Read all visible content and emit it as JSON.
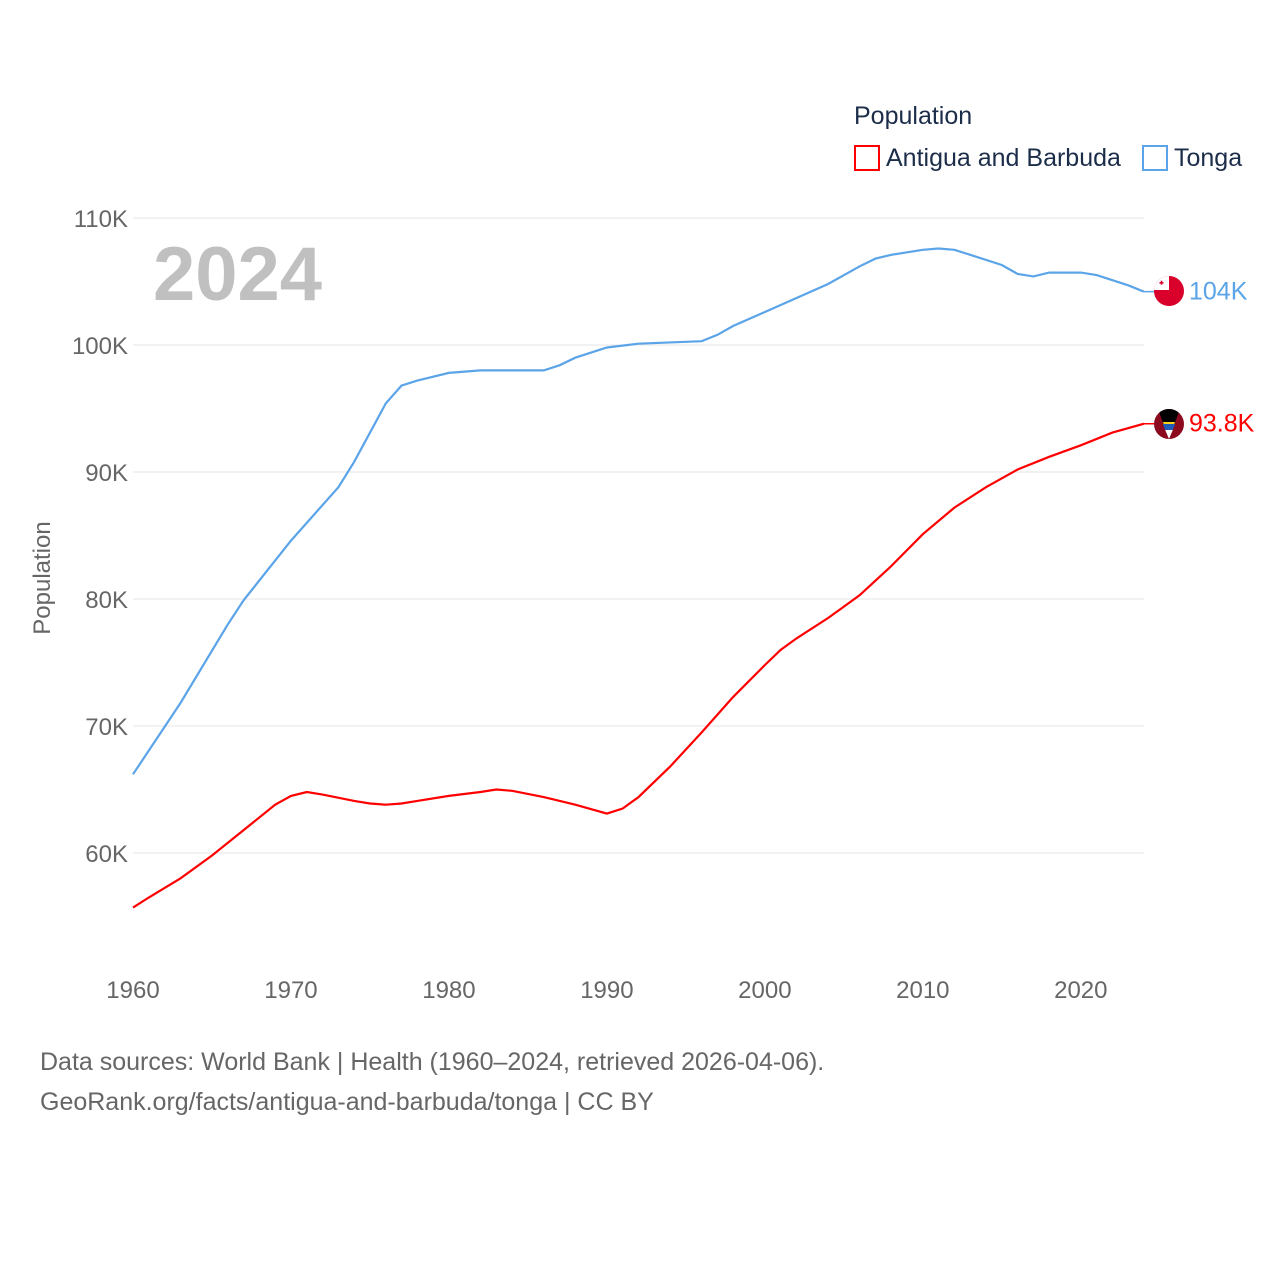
{
  "chart_data": {
    "type": "line",
    "title": "",
    "year_label": "2024",
    "ylabel": "Population",
    "xlabel": "",
    "ylim": [
      52000,
      110000
    ],
    "xlim": [
      1960,
      2024
    ],
    "grid": true,
    "y_ticks": [
      {
        "v": 60000,
        "label": "60K"
      },
      {
        "v": 70000,
        "label": "70K"
      },
      {
        "v": 80000,
        "label": "80K"
      },
      {
        "v": 90000,
        "label": "90K"
      },
      {
        "v": 100000,
        "label": "100K"
      },
      {
        "v": 110000,
        "label": "110K"
      }
    ],
    "x_ticks": [
      {
        "v": 1960,
        "label": "1960"
      },
      {
        "v": 1970,
        "label": "1970"
      },
      {
        "v": 1980,
        "label": "1980"
      },
      {
        "v": 1990,
        "label": "1990"
      },
      {
        "v": 2000,
        "label": "2000"
      },
      {
        "v": 2010,
        "label": "2010"
      },
      {
        "v": 2020,
        "label": "2020"
      }
    ],
    "legend": {
      "title": "Population",
      "placement": "top-right"
    },
    "series": [
      {
        "name": "Antigua and Barbuda",
        "color": "#ff0000",
        "end_label": "93.8K",
        "flag": "antigua-flag",
        "points": [
          [
            1960,
            55700
          ],
          [
            1961,
            56500
          ],
          [
            1963,
            58000
          ],
          [
            1965,
            59800
          ],
          [
            1967,
            61800
          ],
          [
            1969,
            63800
          ],
          [
            1970,
            64500
          ],
          [
            1971,
            64800
          ],
          [
            1972,
            64600
          ],
          [
            1974,
            64100
          ],
          [
            1975,
            63900
          ],
          [
            1976,
            63800
          ],
          [
            1977,
            63900
          ],
          [
            1978,
            64100
          ],
          [
            1980,
            64500
          ],
          [
            1982,
            64800
          ],
          [
            1983,
            65000
          ],
          [
            1984,
            64900
          ],
          [
            1986,
            64400
          ],
          [
            1988,
            63800
          ],
          [
            1990,
            63100
          ],
          [
            1991,
            63500
          ],
          [
            1992,
            64400
          ],
          [
            1994,
            66800
          ],
          [
            1996,
            69500
          ],
          [
            1998,
            72300
          ],
          [
            2000,
            74800
          ],
          [
            2001,
            76000
          ],
          [
            2002,
            76900
          ],
          [
            2004,
            78500
          ],
          [
            2005,
            79400
          ],
          [
            2006,
            80300
          ],
          [
            2008,
            82600
          ],
          [
            2010,
            85100
          ],
          [
            2012,
            87200
          ],
          [
            2014,
            88800
          ],
          [
            2016,
            90200
          ],
          [
            2018,
            91200
          ],
          [
            2020,
            92100
          ],
          [
            2022,
            93100
          ],
          [
            2024,
            93800
          ]
        ]
      },
      {
        "name": "Tonga",
        "color": "#5ba4e8",
        "end_label": "104K",
        "flag": "tonga-flag",
        "points": [
          [
            1960,
            66200
          ],
          [
            1963,
            71800
          ],
          [
            1966,
            78000
          ],
          [
            1967,
            79900
          ],
          [
            1970,
            84600
          ],
          [
            1973,
            88800
          ],
          [
            1974,
            90800
          ],
          [
            1976,
            95400
          ],
          [
            1977,
            96800
          ],
          [
            1978,
            97200
          ],
          [
            1980,
            97800
          ],
          [
            1982,
            98000
          ],
          [
            1986,
            98000
          ],
          [
            1987,
            98400
          ],
          [
            1988,
            99000
          ],
          [
            1989,
            99400
          ],
          [
            1990,
            99800
          ],
          [
            1992,
            100100
          ],
          [
            1996,
            100300
          ],
          [
            1997,
            100800
          ],
          [
            1998,
            101500
          ],
          [
            2000,
            102600
          ],
          [
            2002,
            103700
          ],
          [
            2004,
            104800
          ],
          [
            2006,
            106200
          ],
          [
            2007,
            106800
          ],
          [
            2008,
            107100
          ],
          [
            2010,
            107500
          ],
          [
            2011,
            107600
          ],
          [
            2012,
            107500
          ],
          [
            2013,
            107100
          ],
          [
            2015,
            106300
          ],
          [
            2016,
            105600
          ],
          [
            2017,
            105400
          ],
          [
            2018,
            105700
          ],
          [
            2020,
            105700
          ],
          [
            2021,
            105500
          ],
          [
            2023,
            104700
          ],
          [
            2024,
            104200
          ]
        ]
      }
    ]
  },
  "footer": {
    "line1": "Data sources: World Bank | Health (1960–2024, retrieved 2026-04-06).",
    "line2": "GeoRank.org/facts/antigua-and-barbuda/tonga | CC BY"
  }
}
